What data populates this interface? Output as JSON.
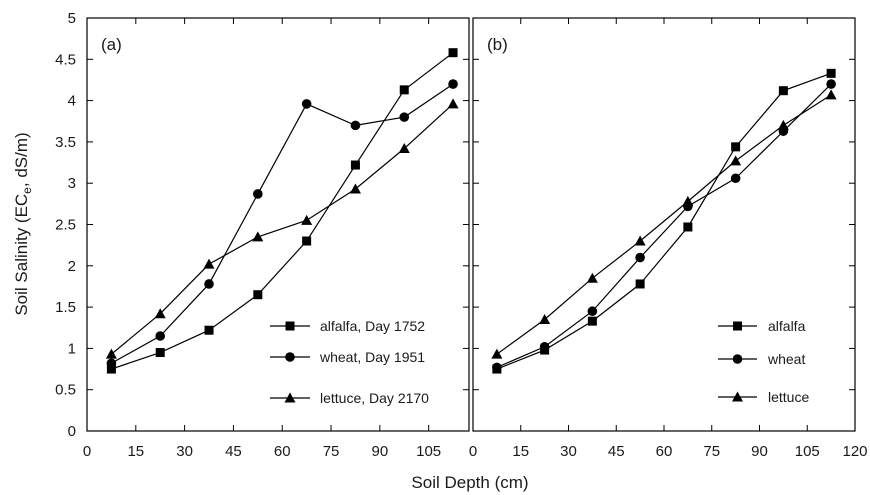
{
  "chart_data": {
    "type": "line",
    "xlabel": "Soil Depth (cm)",
    "ylabel": "Soil Salinity (EC",
    "ylabel_sub": "e",
    "ylabel_tail": ", dS/m)",
    "xlim": [
      0,
      120
    ],
    "ylim": [
      0,
      5
    ],
    "grid": false,
    "x_ticks_left": [
      "0",
      "15",
      "30",
      "45",
      "60",
      "75",
      "90",
      "105"
    ],
    "x_ticks_right": [
      "0",
      "15",
      "30",
      "45",
      "60",
      "75",
      "90",
      "105",
      "120"
    ],
    "y_ticks": [
      "0",
      "0.5",
      "1",
      "1.5",
      "2",
      "2.5",
      "3",
      "3.5",
      "4",
      "4.5",
      "5"
    ],
    "panels": [
      {
        "label": "(a)",
        "legend_position": "bottom-right",
        "series": [
          {
            "name": "alfalfa, Day 1752",
            "marker": "square",
            "x": [
              7.5,
              22.5,
              37.5,
              52.5,
              67.5,
              82.5,
              97.5,
              112.5
            ],
            "y": [
              0.75,
              0.95,
              1.22,
              1.65,
              2.3,
              3.22,
              4.13,
              4.58
            ]
          },
          {
            "name": "wheat, Day 1951",
            "marker": "circle",
            "x": [
              7.5,
              22.5,
              37.5,
              52.5,
              67.5,
              82.5,
              97.5,
              112.5
            ],
            "y": [
              0.82,
              1.15,
              1.78,
              2.87,
              3.96,
              3.7,
              3.8,
              4.2
            ]
          },
          {
            "name": "lettuce, Day 2170",
            "marker": "triangle",
            "x": [
              7.5,
              22.5,
              37.5,
              52.5,
              67.5,
              82.5,
              97.5,
              112.5
            ],
            "y": [
              0.93,
              1.42,
              2.02,
              2.35,
              2.55,
              2.93,
              3.42,
              3.96
            ]
          }
        ]
      },
      {
        "label": "(b)",
        "legend_position": "bottom-right",
        "series": [
          {
            "name": "alfalfa",
            "marker": "square",
            "x": [
              7.5,
              22.5,
              37.5,
              52.5,
              67.5,
              82.5,
              97.5,
              112.5
            ],
            "y": [
              0.75,
              0.98,
              1.33,
              1.78,
              2.47,
              3.44,
              4.12,
              4.33
            ]
          },
          {
            "name": "wheat",
            "marker": "circle",
            "x": [
              7.5,
              22.5,
              37.5,
              52.5,
              67.5,
              82.5,
              97.5,
              112.5
            ],
            "y": [
              0.77,
              1.02,
              1.45,
              2.1,
              2.72,
              3.06,
              3.63,
              4.2
            ]
          },
          {
            "name": "lettuce",
            "marker": "triangle",
            "x": [
              7.5,
              22.5,
              37.5,
              52.5,
              67.5,
              82.5,
              97.5,
              112.5
            ],
            "y": [
              0.93,
              1.35,
              1.85,
              2.3,
              2.78,
              3.27,
              3.7,
              4.07
            ]
          }
        ]
      }
    ]
  }
}
